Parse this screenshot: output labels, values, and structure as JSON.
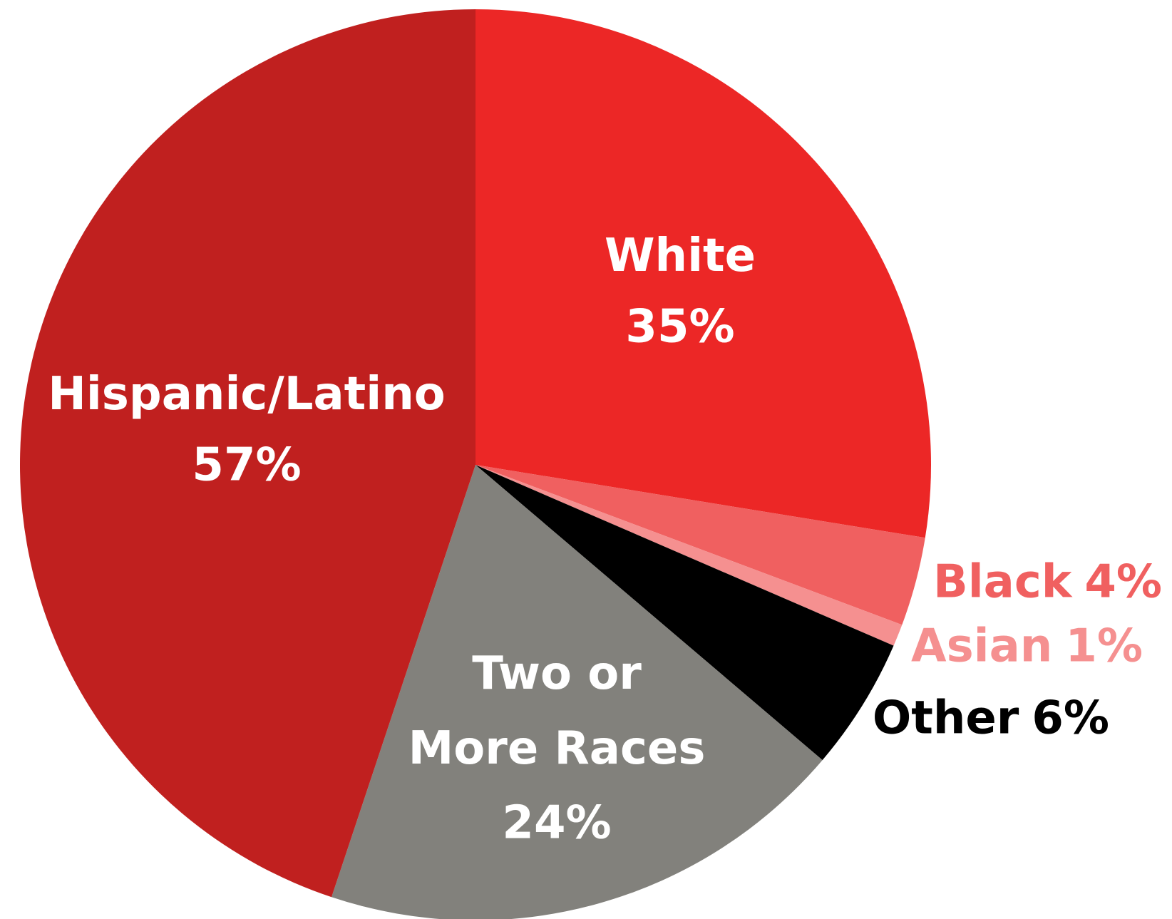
{
  "chart_data": {
    "type": "pie",
    "categories": [
      "White",
      "Black",
      "Asian",
      "Other",
      "Two or More Races",
      "Hispanic/Latino"
    ],
    "values": [
      35,
      4,
      1,
      6,
      24,
      57
    ],
    "value_labels": [
      "35%",
      "4%",
      "1%",
      "6%",
      "24%",
      "57%"
    ],
    "colors": [
      "#ec2726",
      "#f06060",
      "#f59090",
      "#000000",
      "#82817c",
      "#c0201f"
    ]
  }
}
